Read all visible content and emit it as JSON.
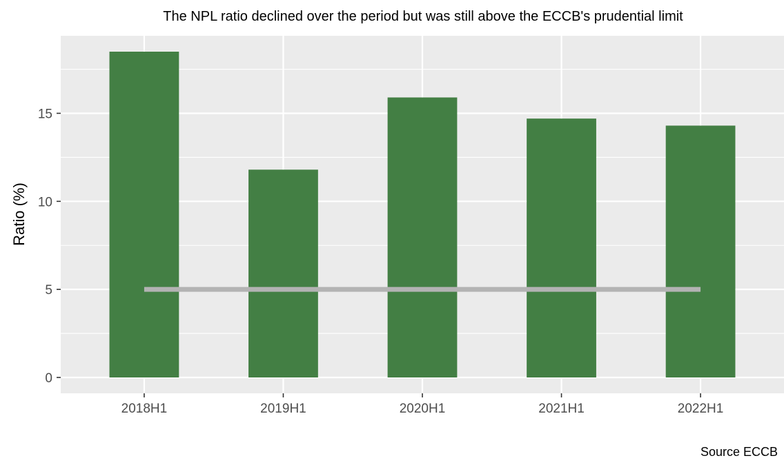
{
  "chart_data": {
    "type": "bar",
    "title": "The NPL ratio declined over the period but was still above the ECCB's prudential limit",
    "xlabel": "",
    "ylabel": "Ratio (%)",
    "caption": "Source ECCB",
    "categories": [
      "2018H1",
      "2019H1",
      "2020H1",
      "2021H1",
      "2022H1"
    ],
    "values": [
      18.5,
      11.8,
      15.9,
      14.7,
      14.3
    ],
    "reference_line": {
      "value": 5,
      "x_start": "2018H1",
      "x_end": "2022H1",
      "color": "#b3b3b3"
    },
    "ylim": [
      -0.9,
      19.4
    ],
    "yticks": [
      0,
      5,
      10,
      15
    ],
    "grid": true,
    "bar_color": "#437f44",
    "panel_background": "#ebebeb",
    "grid_color": "#ffffff"
  }
}
